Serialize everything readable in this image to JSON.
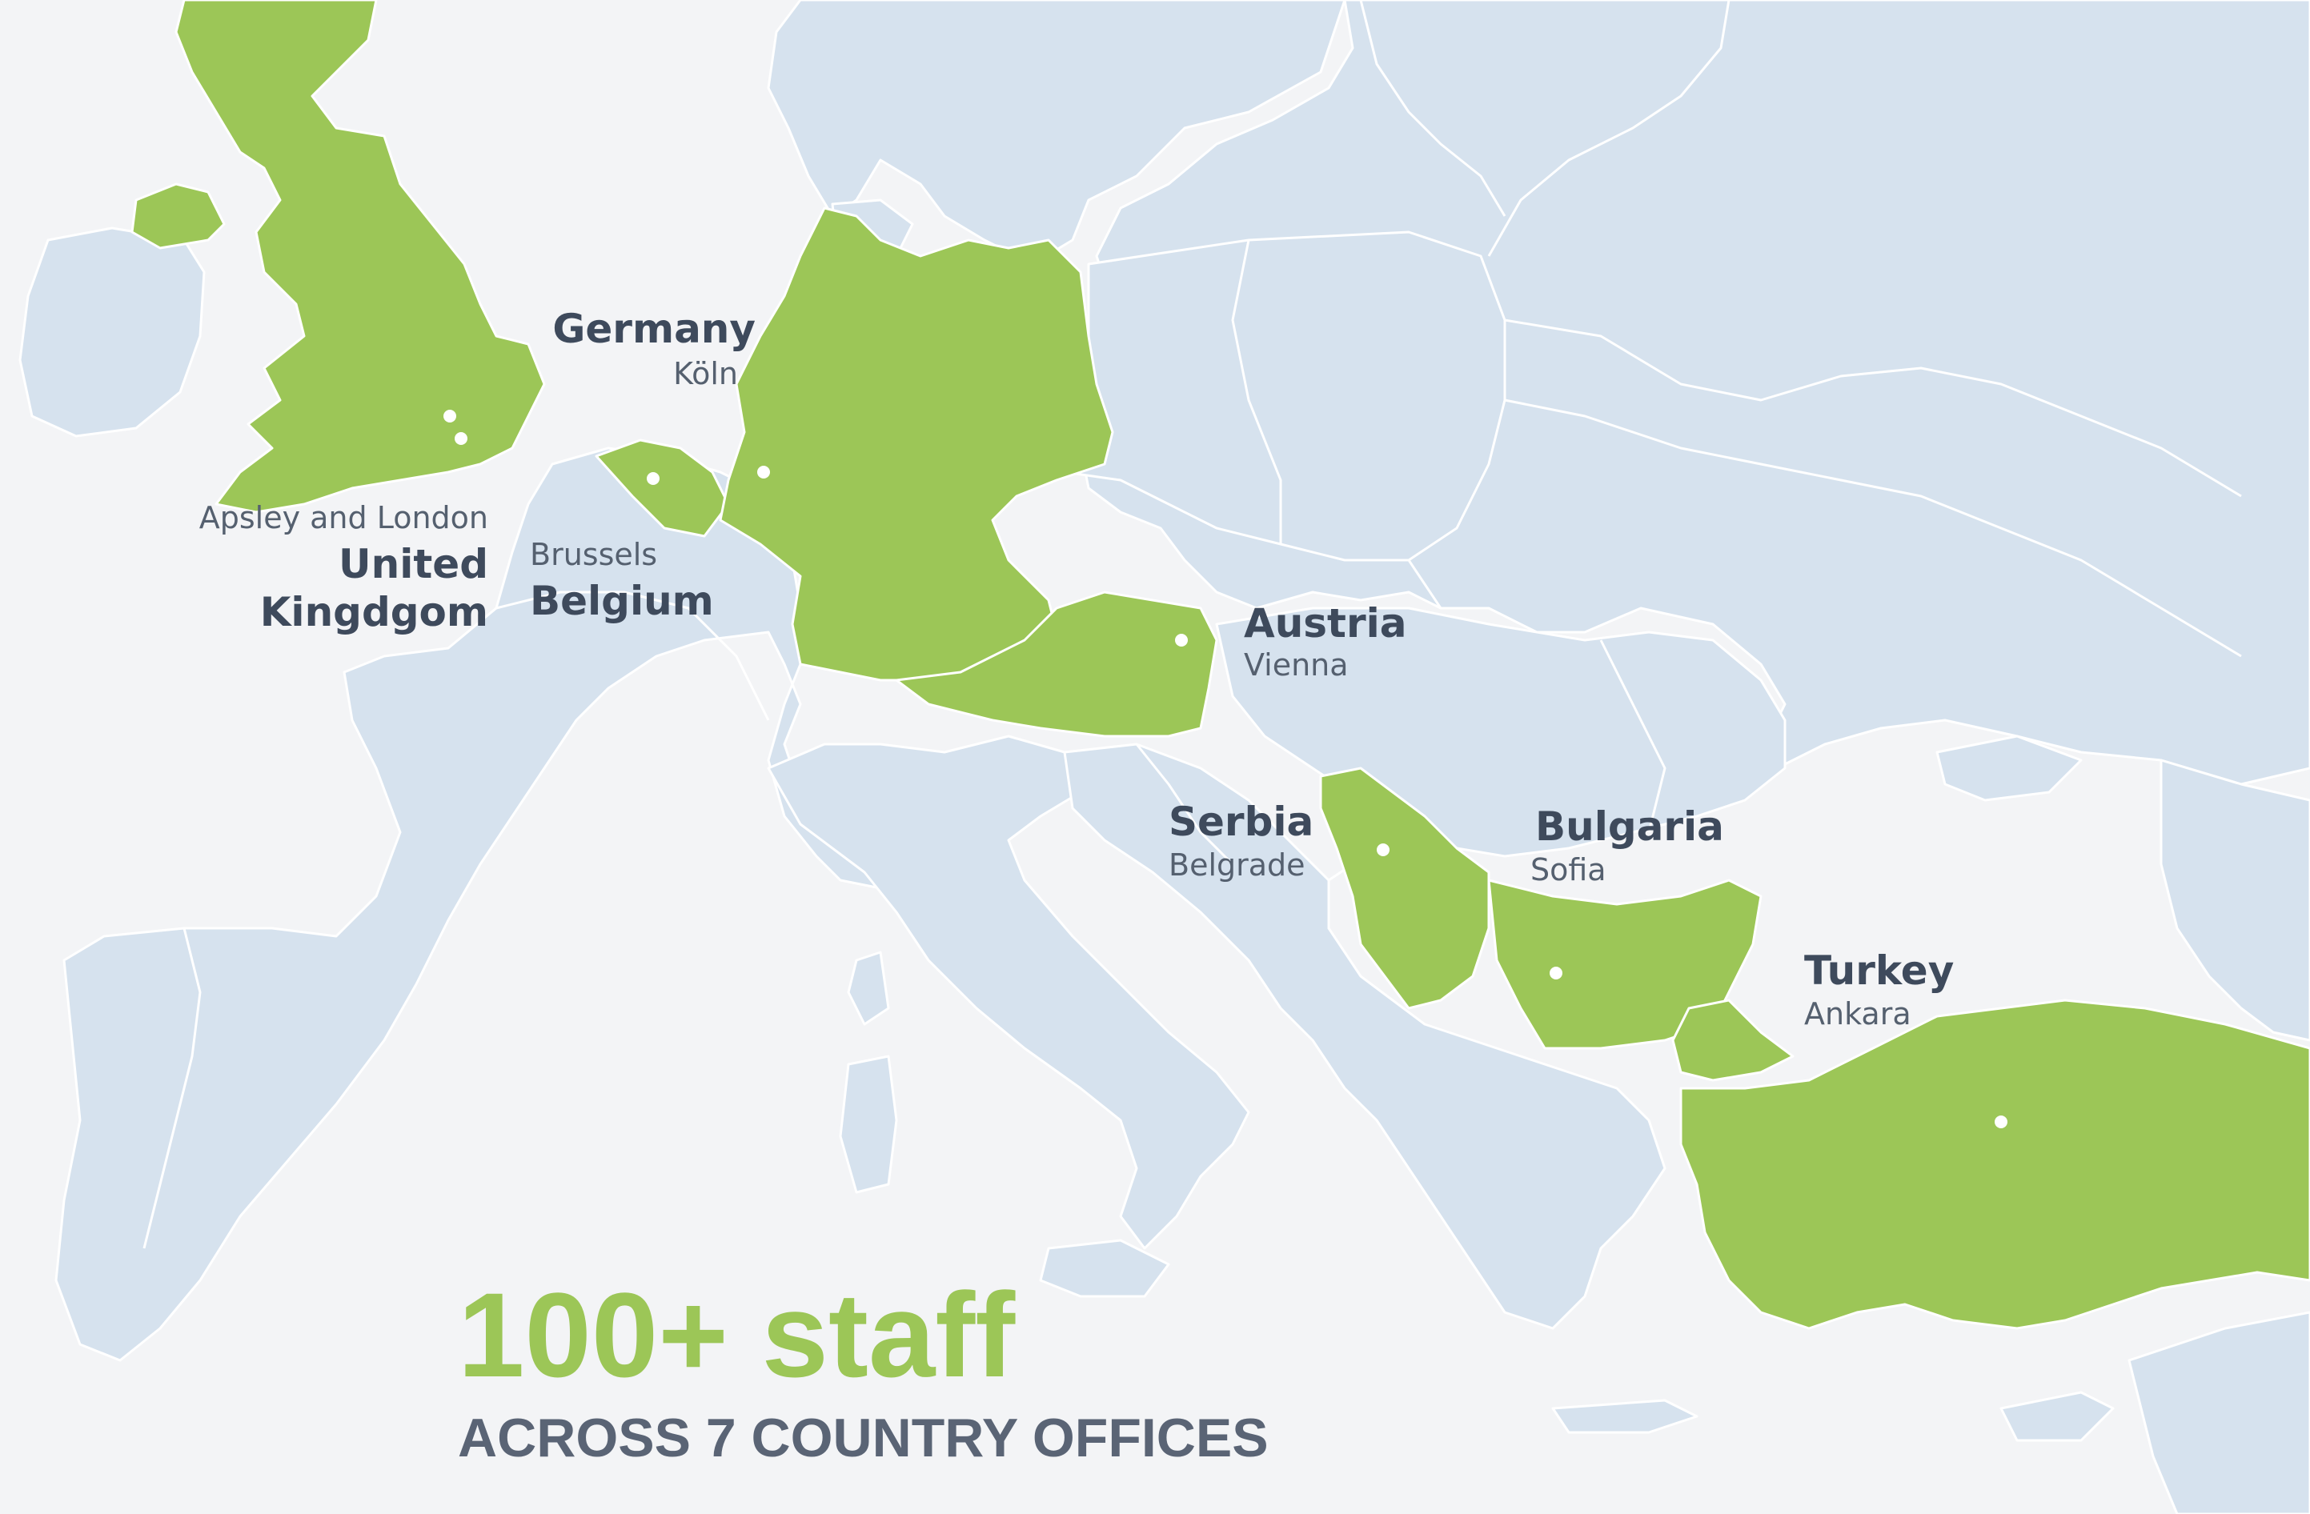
{
  "headline": {
    "staff": "100+ staff",
    "subtitle": "ACROSS 7 COUNTRY OFFICES"
  },
  "colors": {
    "background": "#f3f4f6",
    "land": "#d6e2ee",
    "office_country": "#9cc657",
    "label_dark": "#3e4a5c",
    "label_city": "#55606f",
    "subtitle": "#5a6475"
  },
  "offices": [
    {
      "country_line1": "United",
      "country_line2": "Kingdgom",
      "city": "Apsley and London"
    },
    {
      "country": "Belgium",
      "city": "Brussels"
    },
    {
      "country": "Germany",
      "city": "Köln"
    },
    {
      "country": "Austria",
      "city": "Vienna"
    },
    {
      "country": "Serbia",
      "city": "Belgrade"
    },
    {
      "country": "Bulgaria",
      "city": "Sofia"
    },
    {
      "country": "Turkey",
      "city": "Ankara"
    }
  ]
}
